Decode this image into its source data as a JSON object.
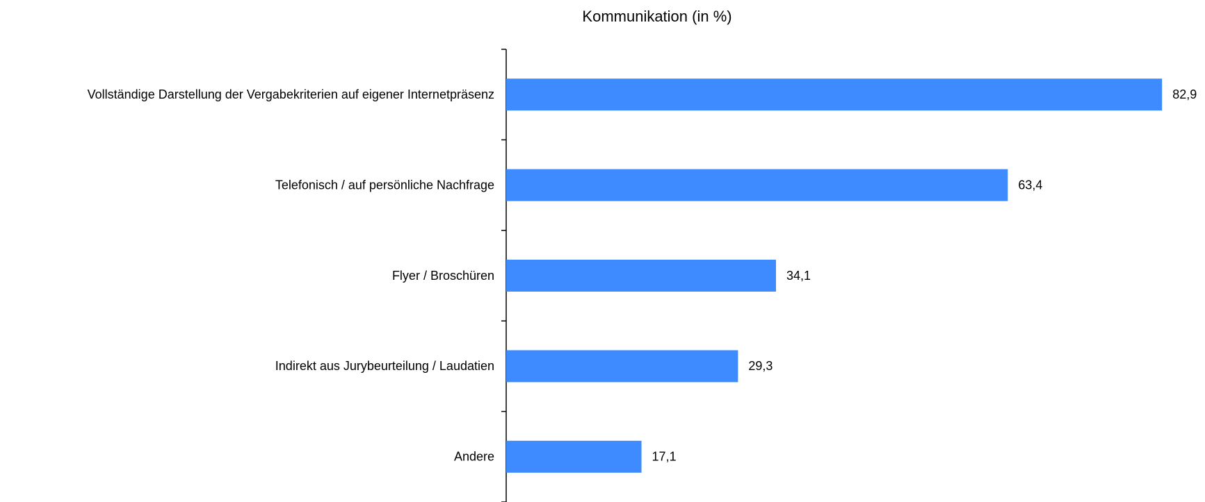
{
  "chart_data": {
    "type": "barh",
    "title": "Kommunikation (in %)",
    "categories": [
      "Vollständige Darstellung der Vergabekriterien auf eigener Internetpräsenz",
      "Telefonisch / auf persönliche Nachfrage",
      "Flyer / Broschüren",
      "Indirekt aus Jurybeurteilung / Laudatien",
      "Andere"
    ],
    "values": [
      82.9,
      63.4,
      34.1,
      29.3,
      17.1
    ],
    "value_labels": [
      "82,9",
      "63,4",
      "34,1",
      "29,3",
      "17,1"
    ],
    "color": "#3d8bff",
    "xlim": [
      0,
      90
    ]
  }
}
